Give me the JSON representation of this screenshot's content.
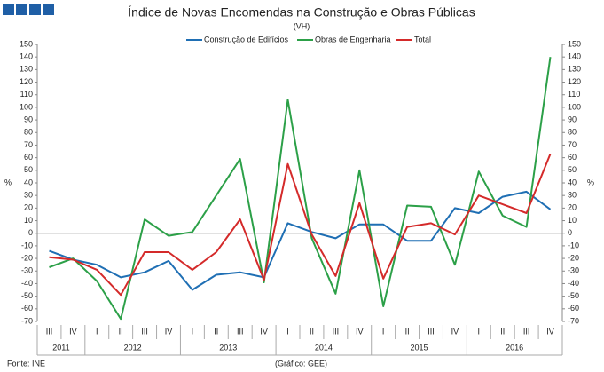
{
  "chart_data": {
    "type": "line",
    "title": "Índice de Novas Encomendas na Construção e Obras Públicas",
    "subtitle": "(VH)",
    "y_label": "%",
    "y2_label": "%",
    "source": "Fonte: INE",
    "credit": "(Gráfico: GEE)",
    "categories": [
      "III",
      "IV",
      "I",
      "II",
      "III",
      "IV",
      "I",
      "II",
      "III",
      "IV",
      "I",
      "II",
      "III",
      "IV",
      "I",
      "II",
      "III",
      "IV",
      "I",
      "II",
      "III",
      "IV"
    ],
    "years": [
      "2011",
      "2011",
      "2012",
      "2012",
      "2012",
      "2012",
      "2013",
      "2013",
      "2013",
      "2013",
      "2014",
      "2014",
      "2014",
      "2014",
      "2015",
      "2015",
      "2015",
      "2015",
      "2016",
      "2016",
      "2016",
      "2016"
    ],
    "series": [
      {
        "name": "Construção de Edifícios",
        "color": "#1f6fb4",
        "values": [
          -14,
          -21,
          -25,
          -35,
          -31,
          -22,
          -45,
          -33,
          -31,
          -35,
          8,
          1,
          -4,
          7,
          7,
          -6,
          -6,
          20,
          16,
          29,
          33,
          19
        ]
      },
      {
        "name": "Obras de Engenharia",
        "color": "#2ca048",
        "values": [
          -27,
          -20,
          -38,
          -68,
          11,
          -2,
          1,
          30,
          59,
          -39,
          106,
          -4,
          -48,
          50,
          -58,
          22,
          21,
          -25,
          49,
          14,
          5,
          140
        ]
      },
      {
        "name": "Total",
        "color": "#d42a2a",
        "values": [
          -19,
          -21,
          -29,
          -49,
          -15,
          -15,
          -29,
          -15,
          11,
          -37,
          55,
          -1,
          -34,
          24,
          -36,
          5,
          8,
          -1,
          30,
          23,
          16,
          63
        ]
      }
    ],
    "ylim": [
      -70,
      150
    ],
    "yticks": [
      -70,
      -60,
      -50,
      -40,
      -30,
      -20,
      -10,
      0,
      10,
      20,
      30,
      40,
      50,
      60,
      70,
      80,
      90,
      100,
      110,
      120,
      130,
      140,
      150
    ],
    "y2lim": [
      -70,
      150
    ],
    "y2ticks": [
      -70,
      -60,
      -50,
      -40,
      -30,
      -20,
      -10,
      0,
      10,
      20,
      30,
      40,
      50,
      60,
      70,
      80,
      90,
      100,
      110,
      120,
      130,
      140,
      150
    ]
  }
}
